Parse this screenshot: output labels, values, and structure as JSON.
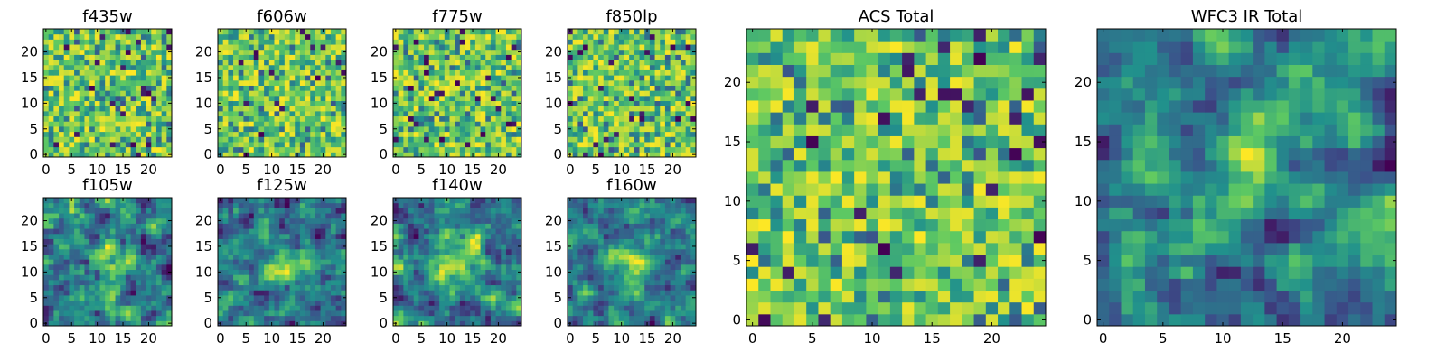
{
  "figure": {
    "colormap": "viridis",
    "colormap_stops": [
      "#440154",
      "#3b528b",
      "#21918c",
      "#5ec962",
      "#fde725"
    ],
    "background": "#ffffff"
  },
  "chart_data": [
    {
      "type": "heatmap",
      "title": "f435w",
      "grid_size": 25,
      "xticks": [
        0,
        5,
        10,
        15,
        20
      ],
      "yticks": [
        0,
        5,
        10,
        15,
        20
      ],
      "pattern": "noise"
    },
    {
      "type": "heatmap",
      "title": "f606w",
      "grid_size": 25,
      "xticks": [
        0,
        5,
        10,
        15,
        20
      ],
      "yticks": [
        0,
        5,
        10,
        15,
        20
      ],
      "pattern": "noise"
    },
    {
      "type": "heatmap",
      "title": "f775w",
      "grid_size": 25,
      "xticks": [
        0,
        5,
        10,
        15,
        20
      ],
      "yticks": [
        0,
        5,
        10,
        15,
        20
      ],
      "pattern": "noise"
    },
    {
      "type": "heatmap",
      "title": "f850lp",
      "grid_size": 25,
      "xticks": [
        0,
        5,
        10,
        15,
        20
      ],
      "yticks": [
        0,
        5,
        10,
        15,
        20
      ],
      "pattern": "noise"
    },
    {
      "type": "heatmap",
      "title": "f105w",
      "grid_size": 25,
      "xticks": [
        0,
        5,
        10,
        15,
        20
      ],
      "yticks": [
        0,
        5,
        10,
        15,
        20
      ],
      "pattern": "source",
      "source_center": [
        12,
        12
      ]
    },
    {
      "type": "heatmap",
      "title": "f125w",
      "grid_size": 25,
      "xticks": [
        0,
        5,
        10,
        15,
        20
      ],
      "yticks": [
        0,
        5,
        10,
        15,
        20
      ],
      "pattern": "source",
      "source_center": [
        12,
        12
      ]
    },
    {
      "type": "heatmap",
      "title": "f140w",
      "grid_size": 25,
      "xticks": [
        0,
        5,
        10,
        15,
        20
      ],
      "yticks": [
        0,
        5,
        10,
        15,
        20
      ],
      "pattern": "source",
      "source_center": [
        12,
        12
      ]
    },
    {
      "type": "heatmap",
      "title": "f160w",
      "grid_size": 25,
      "xticks": [
        0,
        5,
        10,
        15,
        20
      ],
      "yticks": [
        0,
        5,
        10,
        15,
        20
      ],
      "pattern": "source",
      "source_center": [
        12,
        12
      ]
    },
    {
      "type": "heatmap",
      "title": "ACS Total",
      "grid_size": 25,
      "xticks": [
        0,
        5,
        10,
        15,
        20
      ],
      "yticks": [
        0,
        5,
        10,
        15,
        20
      ],
      "pattern": "noise"
    },
    {
      "type": "heatmap",
      "title": "WFC3 IR Total",
      "grid_size": 25,
      "xticks": [
        0,
        5,
        10,
        15,
        20
      ],
      "yticks": [
        0,
        5,
        10,
        15,
        20
      ],
      "pattern": "source",
      "source_center": [
        12,
        13
      ]
    }
  ]
}
